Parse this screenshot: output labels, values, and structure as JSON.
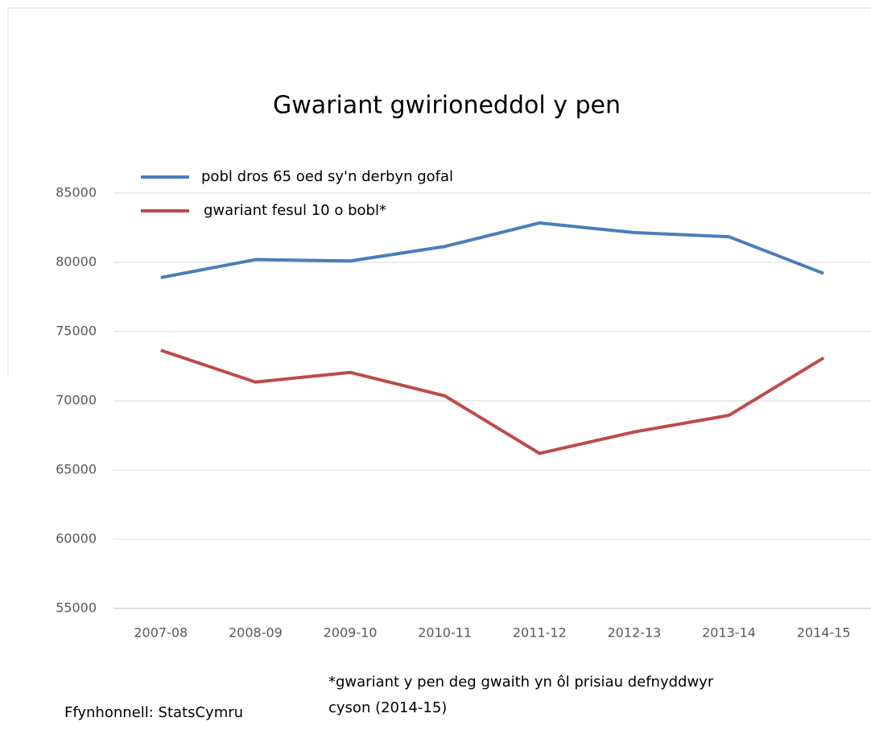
{
  "chart_data": {
    "type": "line",
    "title": "Gwariant  gwirioneddol y pen",
    "categories": [
      "2007-08",
      "2008-09",
      "2009-10",
      "2010-11",
      "2011-12",
      "2012-13",
      "2013-14",
      "2014-15"
    ],
    "series": [
      {
        "name": "pobl dros 65 oed sy'n derbyn gofal",
        "color": "#4a7ebb",
        "values": [
          78900,
          80200,
          80100,
          81150,
          82850,
          82150,
          81850,
          79200
        ]
      },
      {
        "name": "gwariant fesul 10 o bobl*",
        "color": "#be4b48",
        "values": [
          73650,
          71350,
          72050,
          70350,
          66200,
          67750,
          68950,
          73100
        ]
      }
    ],
    "ylim": [
      55000,
      85000
    ],
    "yticks": [
      55000,
      60000,
      65000,
      70000,
      75000,
      80000,
      85000
    ],
    "grid": true,
    "legend": "top-left",
    "source": "Ffynhonnell: StatsCymru",
    "note": [
      "*gwariant y pen deg gwaith yn ôl prisiau defnyddwyr",
      "cyson (2014-15)"
    ]
  }
}
